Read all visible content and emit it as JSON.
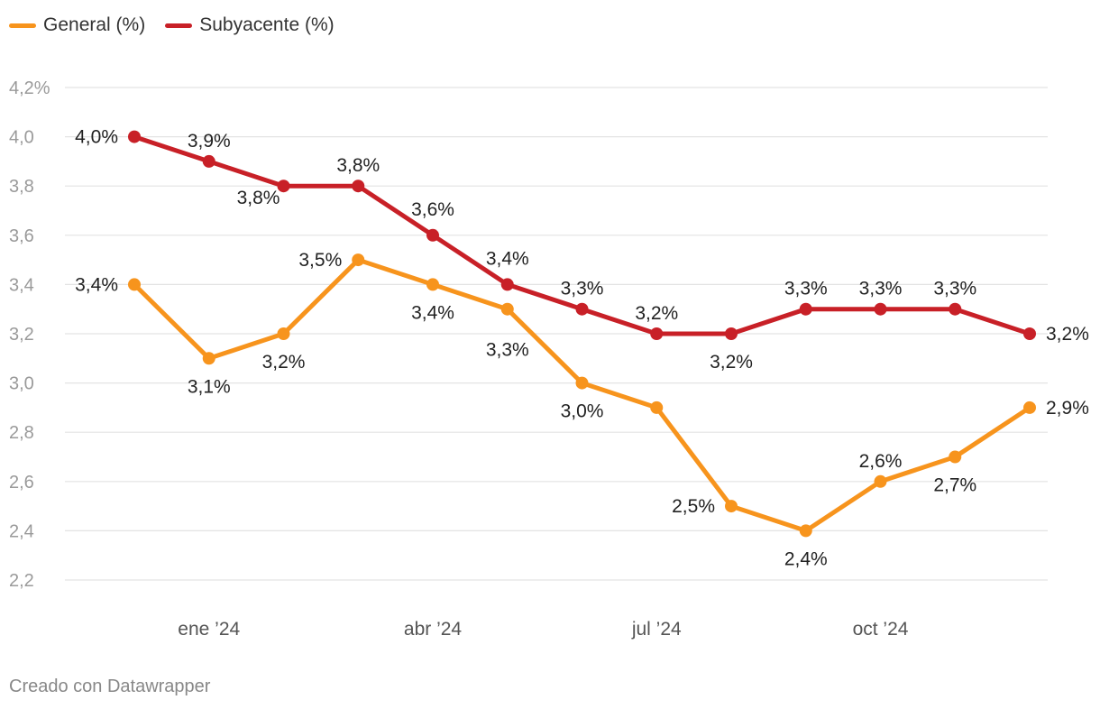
{
  "chart_data": {
    "type": "line",
    "title": "",
    "xlabel": "",
    "ylabel": "",
    "ylim": [
      2.2,
      4.2
    ],
    "yticks": [
      "4,2%",
      "4,0",
      "3,8",
      "3,6",
      "3,4",
      "3,2",
      "3,0",
      "2,8",
      "2,6",
      "2,4",
      "2,2"
    ],
    "ytick_values": [
      4.2,
      4.0,
      3.8,
      3.6,
      3.4,
      3.2,
      3.0,
      2.8,
      2.6,
      2.4,
      2.2
    ],
    "x": [
      "2023-12",
      "2024-01",
      "2024-02",
      "2024-03",
      "2024-04",
      "2024-05",
      "2024-06",
      "2024-07",
      "2024-08",
      "2024-09",
      "2024-10",
      "2024-11",
      "2024-12"
    ],
    "xticks": [
      {
        "label": "ene ’24",
        "at": "2024-01"
      },
      {
        "label": "abr ’24",
        "at": "2024-04"
      },
      {
        "label": "jul ’24",
        "at": "2024-07"
      },
      {
        "label": "oct ’24",
        "at": "2024-10"
      }
    ],
    "grid": true,
    "legend_position": "top-left",
    "series": [
      {
        "name": "General (%)",
        "color": "#f7941d",
        "values": [
          3.4,
          3.1,
          3.2,
          3.5,
          3.4,
          3.3,
          3.0,
          2.9,
          2.5,
          2.4,
          2.6,
          2.7,
          2.9
        ],
        "labels": [
          "3,4%",
          "3,1%",
          "3,2%",
          "3,5%",
          "3,4%",
          "3,3%",
          "3,0%",
          "",
          "2,5%",
          "2,4%",
          "2,6%",
          "2,7%",
          "2,9%"
        ]
      },
      {
        "name": "Subyacente (%)",
        "color": "#c82027",
        "values": [
          4.0,
          3.9,
          3.8,
          3.8,
          3.6,
          3.4,
          3.3,
          3.2,
          3.2,
          3.3,
          3.3,
          3.3,
          3.2
        ],
        "labels": [
          "4,0%",
          "3,9%",
          "3,8%",
          "3,8%",
          "3,6%",
          "3,4%",
          "3,3%",
          "3,2%",
          "3,2%",
          "3,3%",
          "3,3%",
          "3,3%",
          "3,2%"
        ]
      }
    ]
  },
  "legend": {
    "items": [
      {
        "label": "General (%)",
        "color": "#f7941d"
      },
      {
        "label": "Subyacente (%)",
        "color": "#c82027"
      }
    ]
  },
  "footer": {
    "credit": "Creado con Datawrapper"
  }
}
